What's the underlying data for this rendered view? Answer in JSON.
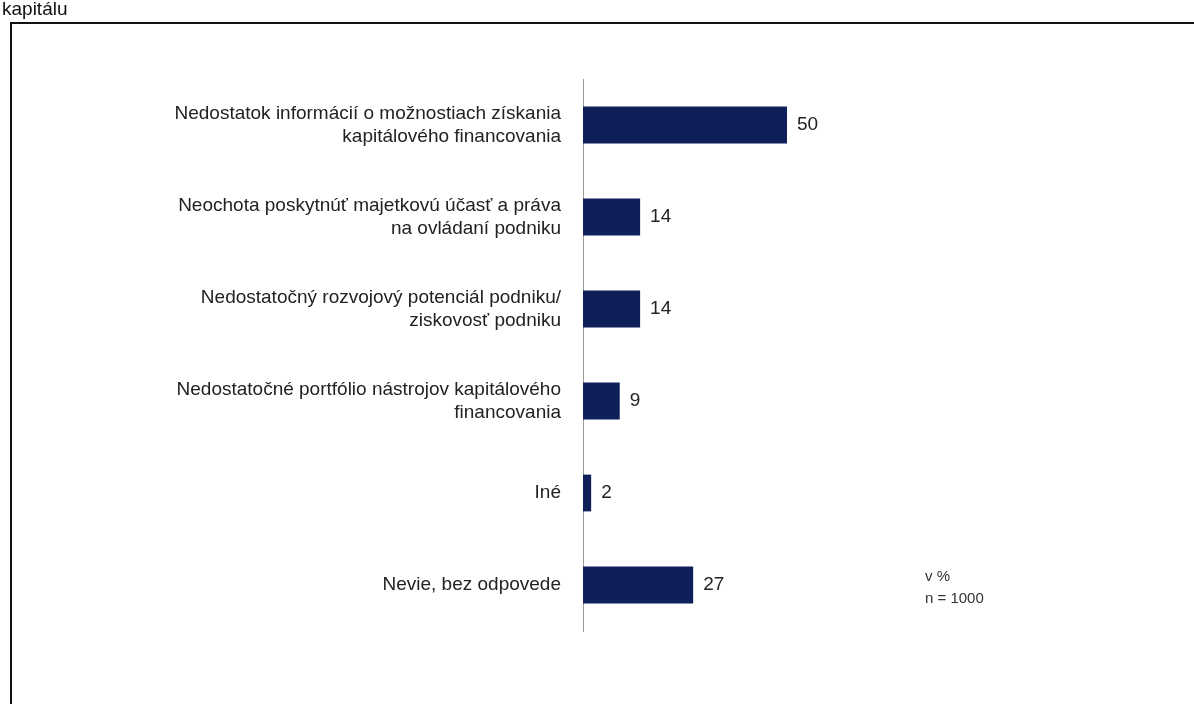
{
  "chart_data": {
    "type": "bar",
    "orientation": "horizontal",
    "title": "kapitálu",
    "categories": [
      "Nedostatok informácií o možnostiach získania kapitálového financovania",
      "Neochota poskytnúť majetkovú účasť a práva na ovládaní podniku",
      "Nedostatočný rozvojový potenciál podniku/ ziskovosť podniku",
      "Nedostatočné portfólio nástrojov kapitálového financovania",
      "Iné",
      "Nevie, bez odpovede"
    ],
    "values": [
      50,
      14,
      14,
      9,
      2,
      27
    ],
    "color": "#0f1f5a",
    "data_labels": true,
    "legend": false,
    "annotations": [
      "v %",
      "n = 1000"
    ]
  }
}
